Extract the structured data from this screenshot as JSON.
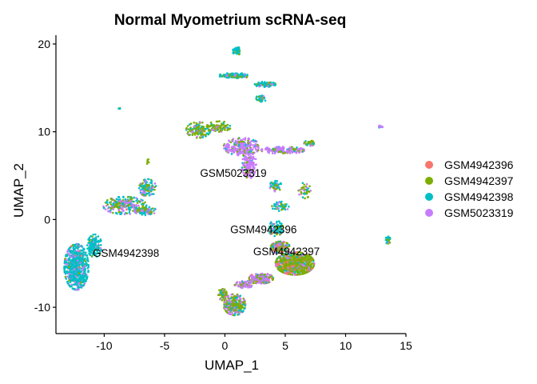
{
  "chart_data": {
    "type": "scatter",
    "title": "Normal Myometrium scRNA-seq",
    "xlabel": "UMAP_1",
    "ylabel": "UMAP_2",
    "xlim": [
      -14,
      15
    ],
    "ylim": [
      -13,
      21
    ],
    "xticks": [
      -10,
      -5,
      0,
      5,
      10,
      15
    ],
    "yticks": [
      -10,
      0,
      10,
      20
    ],
    "legend_position": "right",
    "grid": false,
    "series": [
      {
        "name": "GSM4942396",
        "color": "#F8766D"
      },
      {
        "name": "GSM4942397",
        "color": "#7CAE00"
      },
      {
        "name": "GSM4942398",
        "color": "#00BFC4"
      },
      {
        "name": "GSM5023319",
        "color": "#C77CFF"
      }
    ],
    "clusters": [
      {
        "x": -12.3,
        "y": -5.4,
        "rx": 1.0,
        "ry": 2.6,
        "n": 700,
        "weights": [
          0.01,
          0.05,
          0.8,
          0.14
        ]
      },
      {
        "x": -10.8,
        "y": -3.0,
        "rx": 0.6,
        "ry": 1.3,
        "n": 140,
        "weights": [
          0.01,
          0.1,
          0.75,
          0.14
        ]
      },
      {
        "x": -8.3,
        "y": 1.6,
        "rx": 1.8,
        "ry": 1.0,
        "n": 260,
        "weights": [
          0.01,
          0.3,
          0.4,
          0.29
        ]
      },
      {
        "x": -6.4,
        "y": 3.6,
        "rx": 0.7,
        "ry": 1.0,
        "n": 110,
        "weights": [
          0.01,
          0.3,
          0.5,
          0.19
        ]
      },
      {
        "x": -6.6,
        "y": 1.0,
        "rx": 0.9,
        "ry": 0.5,
        "n": 90,
        "weights": [
          0.01,
          0.3,
          0.4,
          0.29
        ]
      },
      {
        "x": -8.7,
        "y": 12.6,
        "rx": 0.1,
        "ry": 0.15,
        "n": 5,
        "weights": [
          0,
          0.2,
          0.8,
          0
        ]
      },
      {
        "x": -6.4,
        "y": 6.6,
        "rx": 0.1,
        "ry": 0.4,
        "n": 6,
        "weights": [
          0,
          1,
          0,
          0
        ]
      },
      {
        "x": -2.2,
        "y": 10.2,
        "rx": 1.0,
        "ry": 0.9,
        "n": 150,
        "weights": [
          0.01,
          0.6,
          0.25,
          0.14
        ]
      },
      {
        "x": -0.5,
        "y": 10.6,
        "rx": 1.0,
        "ry": 0.6,
        "n": 80,
        "weights": [
          0.01,
          0.7,
          0.15,
          0.14
        ]
      },
      {
        "x": 1.4,
        "y": 8.3,
        "rx": 1.5,
        "ry": 1.0,
        "n": 260,
        "weights": [
          0.01,
          0.12,
          0.07,
          0.8
        ]
      },
      {
        "x": 2.0,
        "y": 6.3,
        "rx": 0.6,
        "ry": 1.6,
        "n": 160,
        "weights": [
          0.01,
          0.1,
          0.06,
          0.83
        ]
      },
      {
        "x": 4.8,
        "y": 7.9,
        "rx": 1.8,
        "ry": 0.4,
        "n": 150,
        "weights": [
          0.01,
          0.15,
          0.1,
          0.74
        ]
      },
      {
        "x": 7.0,
        "y": 8.7,
        "rx": 0.5,
        "ry": 0.3,
        "n": 40,
        "weights": [
          0.01,
          0.5,
          0.4,
          0.09
        ]
      },
      {
        "x": 1.0,
        "y": 19.2,
        "rx": 0.35,
        "ry": 0.45,
        "n": 60,
        "weights": [
          0,
          0.1,
          0.9,
          0
        ]
      },
      {
        "x": 0.8,
        "y": 16.4,
        "rx": 1.3,
        "ry": 0.3,
        "n": 110,
        "weights": [
          0.01,
          0.2,
          0.7,
          0.09
        ]
      },
      {
        "x": 3.3,
        "y": 15.4,
        "rx": 0.9,
        "ry": 0.3,
        "n": 80,
        "weights": [
          0.01,
          0.25,
          0.6,
          0.14
        ]
      },
      {
        "x": 3.0,
        "y": 13.8,
        "rx": 0.4,
        "ry": 0.5,
        "n": 40,
        "weights": [
          0.01,
          0.3,
          0.6,
          0.09
        ]
      },
      {
        "x": 4.2,
        "y": 3.8,
        "rx": 0.5,
        "ry": 0.6,
        "n": 50,
        "weights": [
          0.01,
          0.3,
          0.6,
          0.09
        ]
      },
      {
        "x": 6.6,
        "y": 3.3,
        "rx": 0.5,
        "ry": 0.9,
        "n": 40,
        "weights": [
          0.01,
          0.55,
          0.35,
          0.09
        ]
      },
      {
        "x": 4.6,
        "y": 1.5,
        "rx": 0.7,
        "ry": 0.6,
        "n": 50,
        "weights": [
          0.01,
          0.4,
          0.5,
          0.09
        ]
      },
      {
        "x": 4.2,
        "y": -1.0,
        "rx": 0.6,
        "ry": 0.9,
        "n": 90,
        "weights": [
          0.1,
          0.2,
          0.6,
          0.1
        ]
      },
      {
        "x": 5.8,
        "y": -5.0,
        "rx": 1.6,
        "ry": 1.3,
        "n": 900,
        "weights": [
          0.14,
          0.62,
          0.1,
          0.14
        ]
      },
      {
        "x": 4.6,
        "y": -3.2,
        "rx": 0.8,
        "ry": 0.7,
        "n": 160,
        "weights": [
          0.25,
          0.35,
          0.2,
          0.2
        ]
      },
      {
        "x": 3.0,
        "y": -6.7,
        "rx": 1.0,
        "ry": 0.6,
        "n": 180,
        "weights": [
          0.05,
          0.3,
          0.05,
          0.6
        ]
      },
      {
        "x": 1.6,
        "y": -7.4,
        "rx": 0.8,
        "ry": 0.4,
        "n": 90,
        "weights": [
          0.05,
          0.3,
          0.05,
          0.6
        ]
      },
      {
        "x": 0.8,
        "y": -9.7,
        "rx": 0.9,
        "ry": 1.2,
        "n": 300,
        "weights": [
          0.02,
          0.45,
          0.18,
          0.35
        ]
      },
      {
        "x": -0.2,
        "y": -8.5,
        "rx": 0.35,
        "ry": 0.7,
        "n": 70,
        "weights": [
          0.02,
          0.7,
          0.1,
          0.18
        ]
      },
      {
        "x": 13.5,
        "y": -2.3,
        "rx": 0.25,
        "ry": 0.45,
        "n": 30,
        "weights": [
          0,
          0.3,
          0.6,
          0.1
        ]
      },
      {
        "x": 12.8,
        "y": 10.6,
        "rx": 0.3,
        "ry": 0.12,
        "n": 10,
        "weights": [
          0,
          0,
          0.3,
          0.7
        ]
      }
    ],
    "annotations": [
      {
        "text": "GSM5023319",
        "x": 0.7,
        "y": 5.3
      },
      {
        "text": "GSM4942396",
        "x": 3.2,
        "y": -1.1
      },
      {
        "text": "GSM4942398",
        "x": -8.2,
        "y": -3.8
      },
      {
        "text": "GSM4942397",
        "x": 5.1,
        "y": -3.6
      }
    ]
  }
}
